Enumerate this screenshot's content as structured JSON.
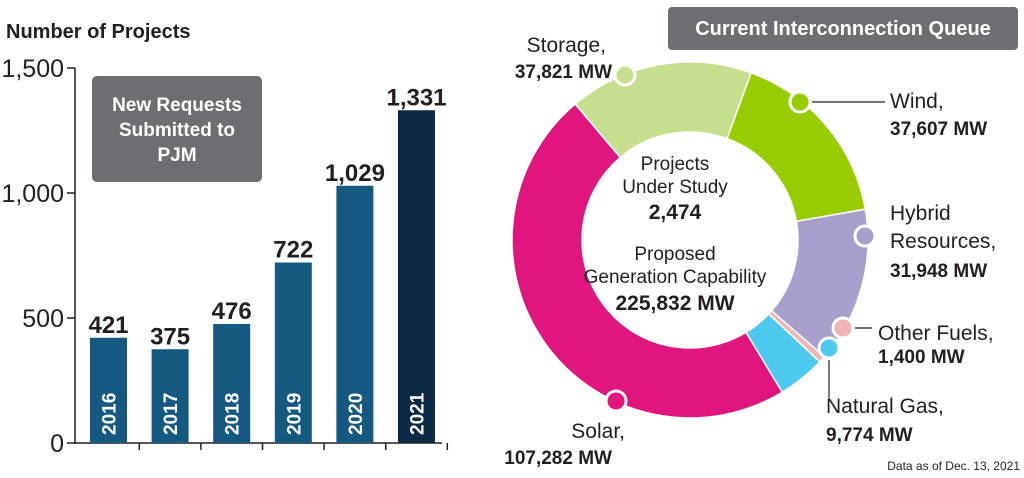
{
  "chart_data": [
    {
      "type": "bar",
      "ylabel": "Number of Projects",
      "ylim": [
        0,
        1500
      ],
      "yticks": [
        0,
        500,
        1000,
        1500
      ],
      "ytick_labels": [
        "0",
        "500",
        "1,000",
        "1,500"
      ],
      "categories": [
        "2016",
        "2017",
        "2018",
        "2019",
        "2020",
        "2021"
      ],
      "values": [
        421,
        375,
        476,
        722,
        1029,
        1331
      ],
      "value_labels": [
        "421",
        "375",
        "476",
        "722",
        "1,029",
        "1,331"
      ],
      "annotation": "New Requests Submitted to PJM",
      "grid": false
    },
    {
      "type": "pie",
      "title": "Current Interconnection Queue",
      "center_text": {
        "line1": "Projects",
        "line2": "Under Study",
        "projects_value": "2,474",
        "line3": "Proposed",
        "line4": "Generation Capability",
        "capacity_value": "225,832 MW"
      },
      "slices": [
        {
          "label": "Storage,",
          "value": 37821,
          "value_label": "37,821 MW",
          "color": "#c5df8f"
        },
        {
          "label": "Wind,",
          "value": 37607,
          "value_label": "37,607 MW",
          "color": "#99cc00"
        },
        {
          "label": "Hybrid Resources,",
          "label_lines": [
            "Hybrid",
            "Resources,"
          ],
          "value": 31948,
          "value_label": "31,948 MW",
          "color": "#a99fcc"
        },
        {
          "label": "Other Fuels,",
          "value": 1400,
          "value_label": "1,400 MW",
          "color": "#f2b3b3"
        },
        {
          "label": "Natural Gas,",
          "value": 9774,
          "value_label": "9,774 MW",
          "color": "#4dc8ee"
        },
        {
          "label": "Solar,",
          "value": 107282,
          "value_label": "107,282 MW",
          "color": "#e0157d"
        }
      ]
    }
  ],
  "footnote": "Data as of Dec. 13, 2021",
  "colors": {
    "bar": "#155880",
    "bar_highlight": "#0d2a44",
    "annotation_box": "#6d6e71",
    "title_box": "#6d6e71",
    "axis": "#231f20"
  }
}
